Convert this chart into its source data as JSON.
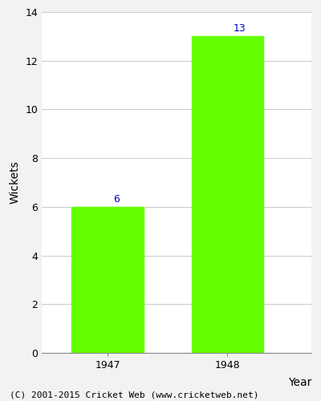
{
  "years": [
    "1947",
    "1948"
  ],
  "values": [
    6,
    13
  ],
  "bar_color": "#66ff00",
  "bar_width": 0.6,
  "xlabel": "Year",
  "ylabel": "Wickets",
  "ylim": [
    0,
    14
  ],
  "yticks": [
    0,
    2,
    4,
    6,
    8,
    10,
    12,
    14
  ],
  "label_color": "#0000cc",
  "label_fontsize": 9,
  "axis_label_fontsize": 10,
  "tick_fontsize": 9,
  "footer_text": "(C) 2001-2015 Cricket Web (www.cricketweb.net)",
  "footer_fontsize": 8,
  "background_color": "#f2f2f2",
  "plot_bg_color": "#ffffff",
  "grid_color": "#cccccc",
  "spine_color": "#888888"
}
